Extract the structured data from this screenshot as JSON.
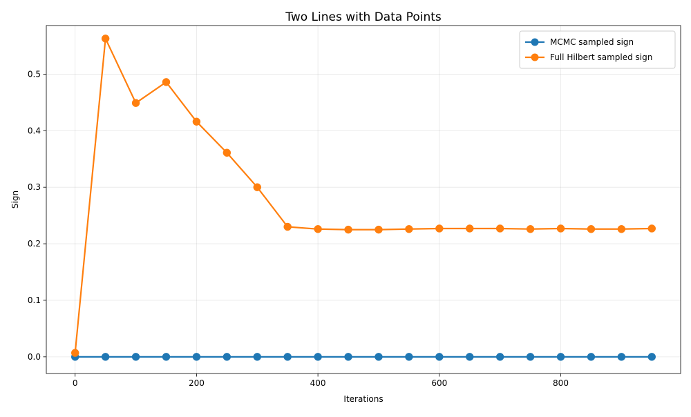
{
  "chart_data": {
    "type": "line",
    "title": "Two Lines with Data Points",
    "xlabel": "Iterations",
    "ylabel": "Sign",
    "xlim": [
      -47.5,
      997.5
    ],
    "ylim": [
      -0.0295,
      0.586
    ],
    "xticks": [
      0,
      200,
      400,
      600,
      800
    ],
    "yticks": [
      0.0,
      0.1,
      0.2,
      0.3,
      0.4,
      0.5
    ],
    "ytick_labels": [
      "0.0",
      "0.1",
      "0.2",
      "0.3",
      "0.4",
      "0.5"
    ],
    "grid": true,
    "legend_position": "top-right",
    "x": [
      0,
      50,
      100,
      150,
      200,
      250,
      300,
      350,
      400,
      450,
      500,
      550,
      600,
      650,
      700,
      750,
      800,
      850,
      900,
      950
    ],
    "series": [
      {
        "name": "MCMC sampled sign",
        "color": "#1f77b4",
        "values": [
          0.0,
          0.0,
          0.0,
          0.0,
          0.0,
          0.0,
          0.0,
          0.0,
          0.0,
          0.0,
          0.0,
          0.0,
          0.0,
          0.0,
          0.0,
          0.0,
          0.0,
          0.0,
          0.0,
          0.0
        ]
      },
      {
        "name": "Full Hilbert sampled sign",
        "color": "#ff7f0e",
        "values": [
          0.007,
          0.563,
          0.449,
          0.486,
          0.416,
          0.361,
          0.3,
          0.23,
          0.226,
          0.225,
          0.225,
          0.226,
          0.227,
          0.227,
          0.227,
          0.226,
          0.227,
          0.226,
          0.226,
          0.227
        ]
      }
    ]
  }
}
